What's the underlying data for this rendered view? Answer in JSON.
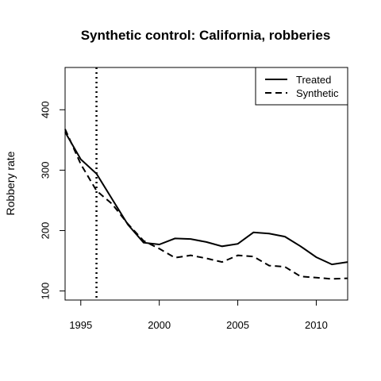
{
  "chart_data": {
    "type": "line",
    "title": "Synthetic control: California, robberies",
    "xlabel": "",
    "ylabel": "Robbery rate",
    "xlim": [
      1994,
      2012
    ],
    "ylim": [
      85,
      470
    ],
    "x_ticks": [
      1995,
      2000,
      2005,
      2010
    ],
    "y_ticks": [
      100,
      200,
      300,
      400
    ],
    "intervention_year": 1996,
    "legend_position": "top-right",
    "x": [
      1994,
      1995,
      1996,
      1997,
      1998,
      1999,
      2000,
      2001,
      2002,
      2003,
      2004,
      2005,
      2006,
      2007,
      2008,
      2009,
      2010,
      2011,
      2012
    ],
    "series": [
      {
        "name": "Treated",
        "line_style": "solid",
        "values": [
          363,
          318,
          294,
          252,
          210,
          180,
          177,
          187,
          186,
          181,
          174,
          178,
          197,
          195,
          190,
          174,
          156,
          144,
          148
        ]
      },
      {
        "name": "Synthetic",
        "line_style": "dashed",
        "values": [
          368,
          310,
          266,
          244,
          211,
          183,
          170,
          155,
          159,
          154,
          148,
          159,
          157,
          142,
          140,
          124,
          122,
          120,
          121
        ]
      }
    ]
  }
}
